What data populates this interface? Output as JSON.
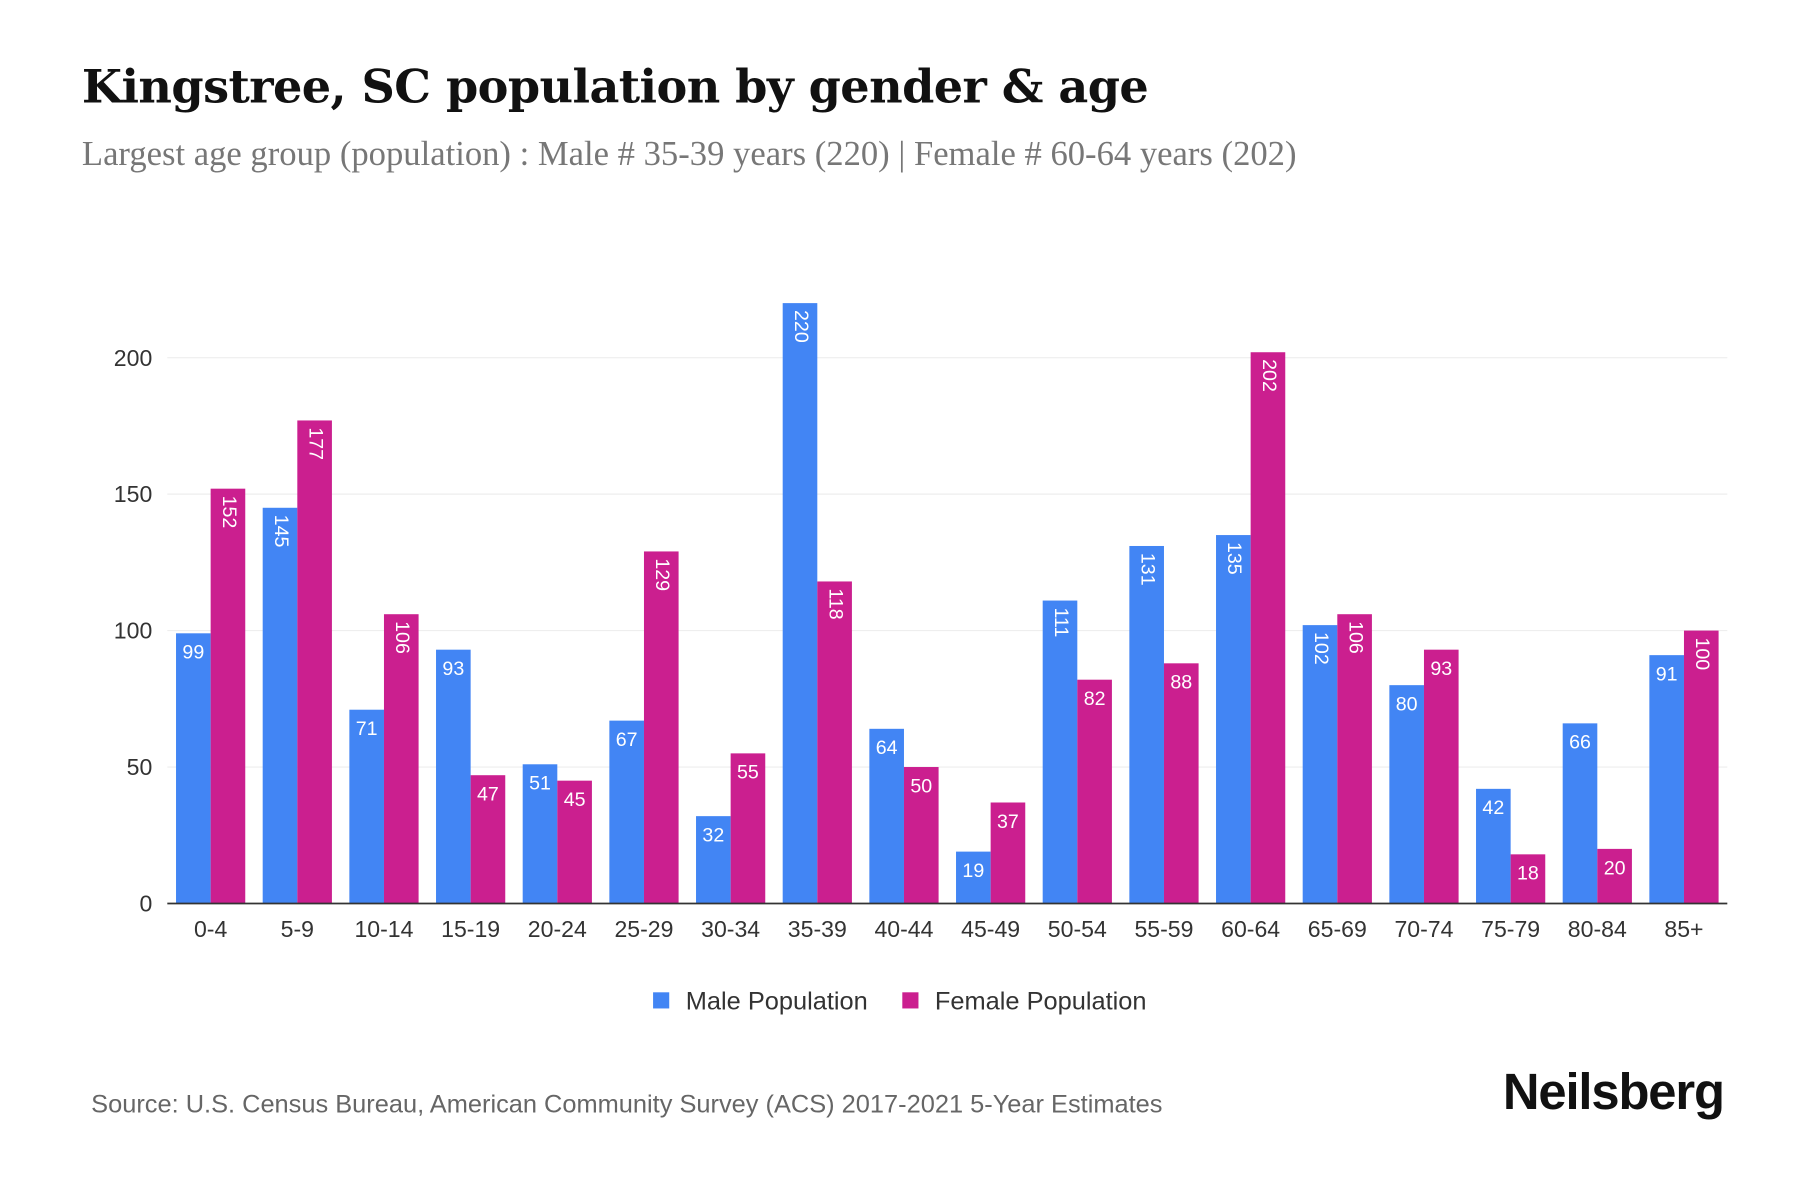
{
  "title": "Kingstree, SC population by gender & age",
  "subtitle": "Largest age group (population) : Male # 35-39 years (220) | Female # 60-64 years (202)",
  "source": "Source: U.S. Census Bureau, American Community Survey (ACS) 2017-2021 5-Year Estimates",
  "logo": "Neilsberg",
  "colors": {
    "male": "#4285f4",
    "female": "#cb1f8f"
  },
  "chart_data": {
    "type": "bar",
    "categories": [
      "0-4",
      "5-9",
      "10-14",
      "15-19",
      "20-24",
      "25-29",
      "30-34",
      "35-39",
      "40-44",
      "45-49",
      "50-54",
      "55-59",
      "60-64",
      "65-69",
      "70-74",
      "75-79",
      "80-84",
      "85+"
    ],
    "series": [
      {
        "name": "Male Population",
        "values": [
          99,
          145,
          71,
          93,
          51,
          67,
          32,
          220,
          64,
          19,
          111,
          131,
          135,
          102,
          80,
          42,
          66,
          91
        ]
      },
      {
        "name": "Female Population",
        "values": [
          152,
          177,
          106,
          47,
          45,
          129,
          55,
          118,
          50,
          37,
          82,
          88,
          202,
          106,
          93,
          18,
          20,
          100
        ]
      }
    ],
    "yticks": [
      0,
      50,
      100,
      150,
      200
    ],
    "ylim": [
      0,
      220
    ],
    "grid": true,
    "legend": "bottom"
  }
}
